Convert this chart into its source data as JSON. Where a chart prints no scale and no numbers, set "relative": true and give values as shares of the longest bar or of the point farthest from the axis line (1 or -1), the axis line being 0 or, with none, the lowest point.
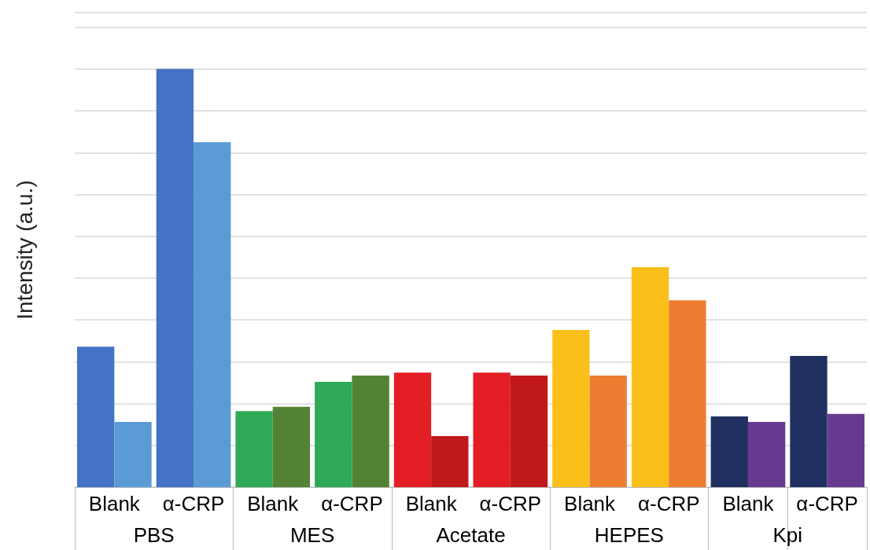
{
  "chart_data": {
    "type": "bar",
    "relative": true,
    "ylabel": "Intensity (a.u.)",
    "grid": "y",
    "categories": [
      "Blank",
      "α-CRP",
      "Blank",
      "α-CRP",
      "Blank",
      "α-CRP",
      "Blank",
      "α-CRP",
      "Blank",
      "α-CRP"
    ],
    "annotations": [
      "PBS",
      "MES",
      "Acetate",
      "HEPES",
      "Kpi"
    ],
    "series": [
      {
        "colors": [
          "#4472c4",
          "#4472c4",
          "#2eaa57",
          "#2eaa57",
          "#e31e24",
          "#e31e24",
          "#fbbf19",
          "#fbbf19",
          "#203060",
          "#203060"
        ],
        "values": [
          0.336,
          1,
          0.182,
          0.252,
          0.274,
          0.274,
          0.376,
          0.526,
          0.169,
          0.314
        ]
      },
      {
        "colors": [
          "#5b9bd5",
          "#5b9bd5",
          "#548235",
          "#548235",
          "#c0181b",
          "#c0181b",
          "#ed7d31",
          "#ed7d31",
          "#673a8f",
          "#673a8f"
        ],
        "values": [
          0.156,
          0.825,
          0.192,
          0.267,
          0.122,
          0.267,
          0.267,
          0.447,
          0.156,
          0.175
        ]
      }
    ]
  }
}
